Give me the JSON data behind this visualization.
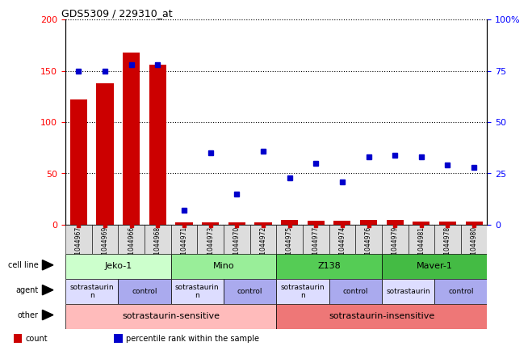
{
  "title": "GDS5309 / 229310_at",
  "samples": [
    "GSM1044967",
    "GSM1044969",
    "GSM1044966",
    "GSM1044968",
    "GSM1044971",
    "GSM1044973",
    "GSM1044970",
    "GSM1044972",
    "GSM1044975",
    "GSM1044977",
    "GSM1044974",
    "GSM1044976",
    "GSM1044979",
    "GSM1044981",
    "GSM1044978",
    "GSM1044980"
  ],
  "counts": [
    122,
    138,
    168,
    156,
    2,
    2,
    2,
    2,
    5,
    4,
    4,
    5,
    5,
    3,
    3,
    3
  ],
  "percentiles": [
    75,
    75,
    78,
    78,
    7,
    35,
    15,
    36,
    23,
    30,
    21,
    33,
    34,
    33,
    29,
    28
  ],
  "bar_color": "#cc0000",
  "dot_color": "#0000cc",
  "left_ylim": [
    0,
    200
  ],
  "right_ylim": [
    0,
    100
  ],
  "left_yticks": [
    0,
    50,
    100,
    150,
    200
  ],
  "right_yticks": [
    0,
    25,
    50,
    75,
    100
  ],
  "right_yticklabels": [
    "0",
    "25",
    "50",
    "75",
    "100%"
  ],
  "cell_lines": [
    {
      "label": "Jeko-1",
      "start": 0,
      "end": 4,
      "color": "#ccffcc"
    },
    {
      "label": "Mino",
      "start": 4,
      "end": 8,
      "color": "#99ee99"
    },
    {
      "label": "Z138",
      "start": 8,
      "end": 12,
      "color": "#55cc55"
    },
    {
      "label": "Maver-1",
      "start": 12,
      "end": 16,
      "color": "#44bb44"
    }
  ],
  "agents": [
    {
      "label": "sotrastaurin\nn",
      "start": 0,
      "end": 2,
      "color": "#ddddff"
    },
    {
      "label": "control",
      "start": 2,
      "end": 4,
      "color": "#aaaaee"
    },
    {
      "label": "sotrastaurin\nn",
      "start": 4,
      "end": 6,
      "color": "#ddddff"
    },
    {
      "label": "control",
      "start": 6,
      "end": 8,
      "color": "#aaaaee"
    },
    {
      "label": "sotrastaurin\nn",
      "start": 8,
      "end": 10,
      "color": "#ddddff"
    },
    {
      "label": "control",
      "start": 10,
      "end": 12,
      "color": "#aaaaee"
    },
    {
      "label": "sotrastaurin",
      "start": 12,
      "end": 14,
      "color": "#ddddff"
    },
    {
      "label": "control",
      "start": 14,
      "end": 16,
      "color": "#aaaaee"
    }
  ],
  "other": [
    {
      "label": "sotrastaurin-sensitive",
      "start": 0,
      "end": 8,
      "color": "#ffbbbb"
    },
    {
      "label": "sotrastaurin-insensitive",
      "start": 8,
      "end": 16,
      "color": "#ee7777"
    }
  ],
  "row_labels": [
    "cell line",
    "agent",
    "other"
  ],
  "legend_items": [
    {
      "color": "#cc0000",
      "label": "count"
    },
    {
      "color": "#0000cc",
      "label": "percentile rank within the sample"
    }
  ],
  "bg_color": "#ffffff"
}
